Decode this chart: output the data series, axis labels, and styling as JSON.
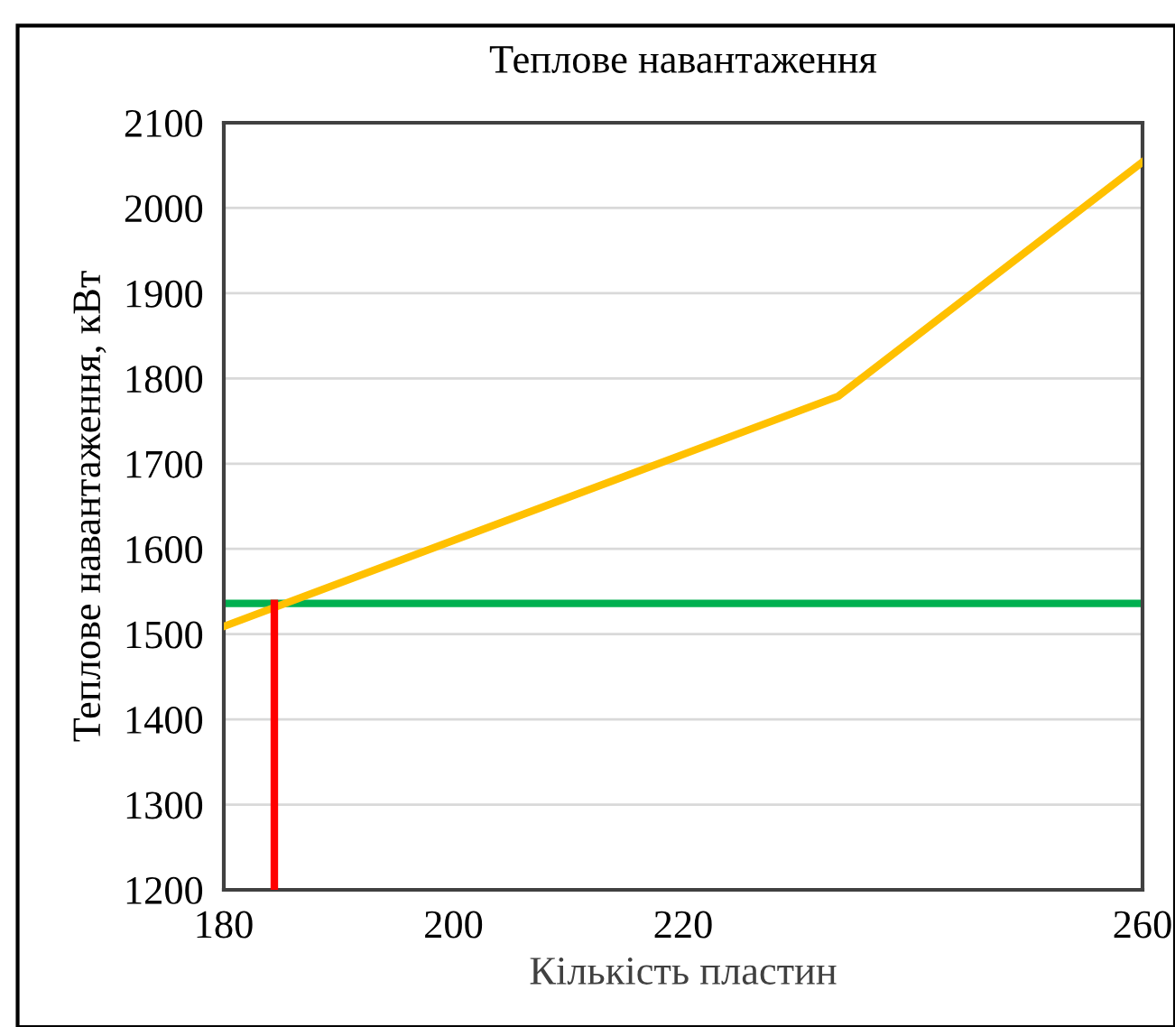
{
  "chart_data": {
    "type": "line",
    "title": "Теплове навантаження",
    "xlabel": "Кількість пластин",
    "ylabel": "Теплове навантаження, кВт",
    "series": [
      {
        "color": "#ffc000",
        "x": [
          180,
          233.5,
          260
        ],
        "values": [
          1509,
          1779,
          2054
        ]
      },
      {
        "color": "#ff0000",
        "x": [
          184.4,
          184.4
        ],
        "values": [
          1200,
          1536
        ]
      }
    ],
    "ref_lines": [
      {
        "axis": "y",
        "value": 1536,
        "color": "#00b050"
      }
    ],
    "xlim": [
      180,
      260
    ],
    "xticks": [
      180,
      200,
      220,
      260
    ],
    "ylim": [
      1200,
      2100
    ],
    "yticks": [
      1200,
      1300,
      1400,
      1500,
      1600,
      1700,
      1800,
      1900,
      2000,
      2100
    ],
    "grid": "y",
    "legend": false,
    "marker": "none",
    "line_style": "solid"
  }
}
